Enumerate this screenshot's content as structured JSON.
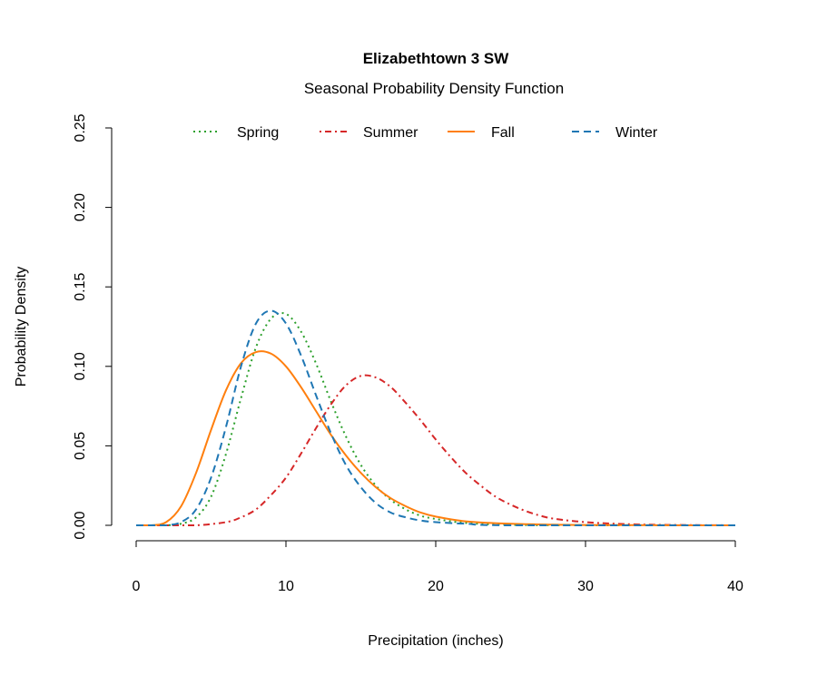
{
  "chart_data": {
    "type": "line",
    "title": "Elizabethtown 3 SW",
    "subtitle": "Seasonal Probability Density Function",
    "xlabel": "Precipitation (inches)",
    "ylabel": "Probability Density",
    "xlim": [
      0,
      40
    ],
    "ylim": [
      0,
      0.25
    ],
    "xticks": [
      0,
      10,
      20,
      30,
      40
    ],
    "yticks": [
      "0.00",
      "0.05",
      "0.10",
      "0.15",
      "0.20",
      "0.25"
    ],
    "grid": false,
    "legend_placement": "top",
    "series": [
      {
        "name": "Spring",
        "color": "#2ca02c",
        "dash": "dotted",
        "x": [
          0,
          1,
          2,
          3,
          4,
          5,
          6,
          7,
          8,
          9,
          10,
          11,
          12,
          13,
          14,
          15,
          16,
          17,
          18,
          19,
          20,
          22,
          25,
          30,
          40
        ],
        "y": [
          0,
          0,
          0,
          0.001,
          0.005,
          0.018,
          0.045,
          0.08,
          0.112,
          0.13,
          0.133,
          0.122,
          0.102,
          0.078,
          0.056,
          0.038,
          0.025,
          0.016,
          0.01,
          0.006,
          0.004,
          0.0015,
          0.0003,
          0,
          0
        ]
      },
      {
        "name": "Summer",
        "color": "#d62728",
        "dash": "dotdash",
        "x": [
          0,
          2,
          4,
          6,
          7,
          8,
          9,
          10,
          11,
          12,
          13,
          14,
          15,
          16,
          17,
          18,
          19,
          20,
          21,
          22,
          23,
          24,
          25,
          26,
          27,
          28,
          30,
          32,
          35,
          40
        ],
        "y": [
          0,
          0,
          0,
          0.002,
          0.005,
          0.01,
          0.019,
          0.03,
          0.045,
          0.061,
          0.076,
          0.088,
          0.094,
          0.093,
          0.087,
          0.077,
          0.066,
          0.054,
          0.043,
          0.033,
          0.025,
          0.018,
          0.013,
          0.009,
          0.006,
          0.004,
          0.002,
          0.001,
          0.0003,
          0
        ]
      },
      {
        "name": "Fall",
        "color": "#ff7f0e",
        "dash": "solid",
        "x": [
          0,
          1,
          2,
          3,
          4,
          5,
          6,
          7,
          8,
          9,
          10,
          11,
          12,
          13,
          14,
          15,
          16,
          17,
          18,
          19,
          20,
          22,
          25,
          30,
          40
        ],
        "y": [
          0,
          0,
          0.002,
          0.012,
          0.033,
          0.06,
          0.085,
          0.102,
          0.109,
          0.108,
          0.1,
          0.087,
          0.072,
          0.057,
          0.044,
          0.033,
          0.024,
          0.017,
          0.012,
          0.008,
          0.0055,
          0.0025,
          0.001,
          0.0002,
          0
        ]
      },
      {
        "name": "Winter",
        "color": "#1f77b4",
        "dash": "dashed",
        "x": [
          0,
          1,
          2,
          3,
          4,
          5,
          6,
          7,
          8,
          9,
          10,
          11,
          12,
          13,
          14,
          15,
          16,
          17,
          18,
          19,
          20,
          22,
          25,
          40
        ],
        "y": [
          0,
          0,
          0,
          0.002,
          0.01,
          0.03,
          0.062,
          0.1,
          0.127,
          0.135,
          0.127,
          0.107,
          0.082,
          0.058,
          0.038,
          0.024,
          0.014,
          0.008,
          0.005,
          0.003,
          0.002,
          0.001,
          0,
          0
        ]
      }
    ]
  }
}
